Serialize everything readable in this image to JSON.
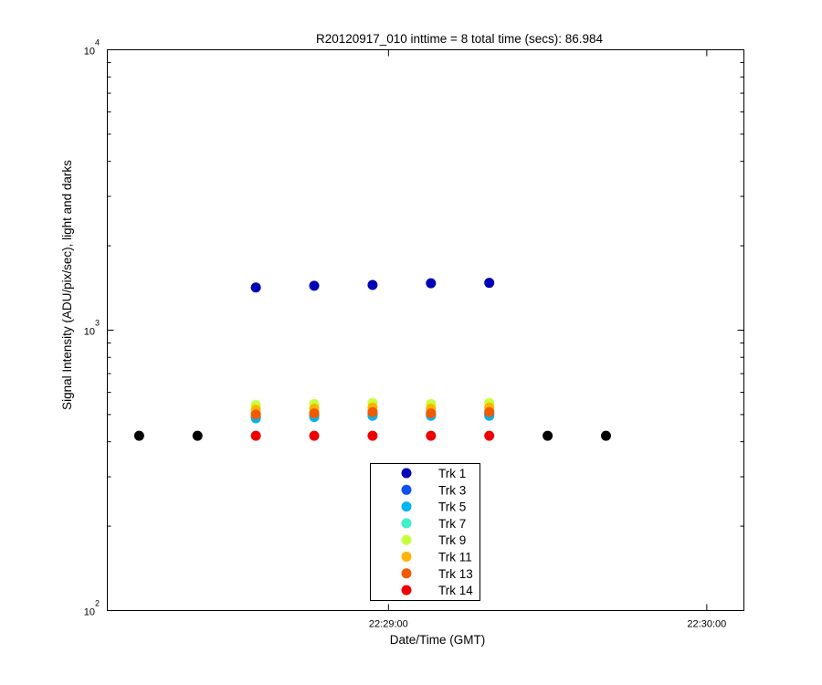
{
  "chart_data": {
    "type": "scatter",
    "title": "R20120917_010 inttime = 8 total time (secs): 86.984",
    "xlabel": "Date/Time (GMT)",
    "ylabel": "Signal Intensity (ADU/pix/sec), light and darks",
    "y_scale": "log",
    "ylim": [
      100,
      10000
    ],
    "y_ticks": [
      {
        "value": 100,
        "base": "10",
        "exp": "2"
      },
      {
        "value": 1000,
        "base": "10",
        "exp": "3"
      },
      {
        "value": 10000,
        "base": "10",
        "exp": "4"
      }
    ],
    "xlim": [
      "22:28:07",
      "22:30:07"
    ],
    "x_ticks": [
      "22:29:00",
      "22:30:00"
    ],
    "grid": false,
    "legend_position": "bottom-center",
    "lights_x": [
      "22:28:35",
      "22:28:46",
      "22:28:57",
      "22:29:08",
      "22:29:19"
    ],
    "series": [
      {
        "name": "Trk 1",
        "color": "#0000b4",
        "values": [
          1420,
          1440,
          1450,
          1470,
          1475
        ]
      },
      {
        "name": "Trk 3",
        "color": "#0f50f0",
        "values": [
          490,
          495,
          500,
          500,
          500
        ]
      },
      {
        "name": "Trk 5",
        "color": "#00b4f0",
        "values": [
          485,
          490,
          495,
          495,
          495
        ]
      },
      {
        "name": "Trk 7",
        "color": "#3cf0c8",
        "values": [
          505,
          510,
          515,
          515,
          515
        ]
      },
      {
        "name": "Trk 9",
        "color": "#c8ff3c",
        "values": [
          540,
          545,
          550,
          545,
          550
        ]
      },
      {
        "name": "Trk 11",
        "color": "#ffb400",
        "values": [
          520,
          525,
          530,
          525,
          530
        ]
      },
      {
        "name": "Trk 13",
        "color": "#f05a00",
        "values": [
          500,
          505,
          510,
          505,
          510
        ]
      },
      {
        "name": "Trk 14",
        "color": "#f00000",
        "values": [
          420,
          420,
          420,
          420,
          420
        ]
      }
    ],
    "darks": {
      "color": "#000000",
      "x": [
        "22:28:13",
        "22:28:24",
        "22:29:30",
        "22:29:41"
      ],
      "values": [
        420,
        420,
        420,
        420
      ]
    }
  }
}
